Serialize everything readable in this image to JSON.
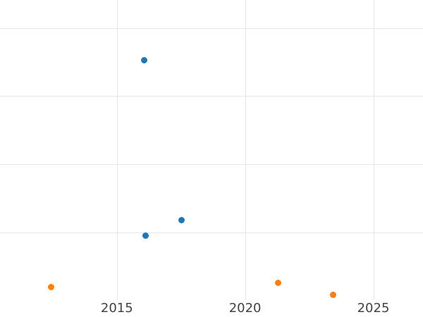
{
  "chart_data": {
    "type": "scatter",
    "title": "",
    "xlabel": "",
    "ylabel": "",
    "x_ticks": [
      2015,
      2020,
      2025
    ],
    "x_tick_labels": [
      "2015",
      "2020",
      "2025"
    ],
    "xlim": [
      2010.44,
      2026.94
    ],
    "ylim": [
      0,
      4.41
    ],
    "y_gridlines": [
      1,
      2,
      3,
      4
    ],
    "y_tick_labels": [],
    "y_axis_note": "no y tick labels visible; values estimated in gridline units (bottom edge = 0, 1 per gridline)",
    "grid": true,
    "legend": false,
    "series": [
      {
        "name": "blue-series",
        "color": "#1f77b4",
        "points": [
          {
            "x": 2016.05,
            "y": 3.53
          },
          {
            "x": 2016.13,
            "y": 0.95
          },
          {
            "x": 2017.52,
            "y": 1.18
          }
        ]
      },
      {
        "name": "orange-series",
        "color": "#ff7f0e",
        "points": [
          {
            "x": 2012.43,
            "y": 0.2
          },
          {
            "x": 2021.28,
            "y": 0.26
          },
          {
            "x": 2023.44,
            "y": 0.08
          }
        ]
      }
    ],
    "marker_diameter_px": 9,
    "colors": {
      "grid": "#e6e6e6",
      "tick_label": "#424242",
      "background": "#ffffff"
    }
  }
}
